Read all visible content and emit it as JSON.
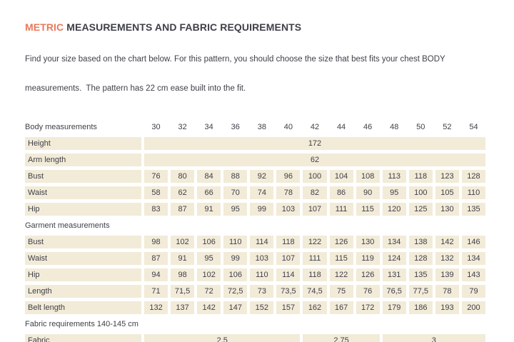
{
  "header": {
    "title_accent": "METRIC",
    "title_rest": " MEASUREMENTS AND FABRIC REQUIREMENTS",
    "intro_line1": "Find your size based on the chart below. For this pattern, you should choose the size that best fits your chest BODY",
    "intro_line2": "measurements.  The pattern has 22 cm ease built into the fit."
  },
  "colors": {
    "accent": "#e8795c",
    "cell_background": "#f2ebd8",
    "text": "#3e3f49"
  },
  "chart_data": {
    "type": "table",
    "title": "METRIC MEASUREMENTS AND FABRIC REQUIREMENTS",
    "sizes": [
      "30",
      "32",
      "34",
      "36",
      "38",
      "40",
      "42",
      "44",
      "46",
      "48",
      "50",
      "52",
      "54"
    ],
    "rows": [
      {
        "type": "sizes-header",
        "label": "Body measurements"
      },
      {
        "type": "span",
        "label": "Height",
        "value": "172"
      },
      {
        "type": "span",
        "label": "Arm length",
        "value": "62"
      },
      {
        "type": "values",
        "label": "Bust",
        "values": [
          "76",
          "80",
          "84",
          "88",
          "92",
          "96",
          "100",
          "104",
          "108",
          "113",
          "118",
          "123",
          "128"
        ]
      },
      {
        "type": "values",
        "label": "Waist",
        "values": [
          "58",
          "62",
          "66",
          "70",
          "74",
          "78",
          "82",
          "86",
          "90",
          "95",
          "100",
          "105",
          "110"
        ]
      },
      {
        "type": "values",
        "label": "Hip",
        "values": [
          "83",
          "87",
          "91",
          "95",
          "99",
          "103",
          "107",
          "111",
          "115",
          "120",
          "125",
          "130",
          "135"
        ]
      },
      {
        "type": "section",
        "label": "Garment measurements"
      },
      {
        "type": "values",
        "label": "Bust",
        "values": [
          "98",
          "102",
          "106",
          "110",
          "114",
          "118",
          "122",
          "126",
          "130",
          "134",
          "138",
          "142",
          "146"
        ]
      },
      {
        "type": "values",
        "label": "Waist",
        "values": [
          "87",
          "91",
          "95",
          "99",
          "103",
          "107",
          "111",
          "115",
          "119",
          "124",
          "128",
          "132",
          "134"
        ]
      },
      {
        "type": "values",
        "label": "Hip",
        "values": [
          "94",
          "98",
          "102",
          "106",
          "110",
          "114",
          "118",
          "122",
          "126",
          "131",
          "135",
          "139",
          "143"
        ]
      },
      {
        "type": "values",
        "label": "Length",
        "values": [
          "71",
          "71,5",
          "72",
          "72,5",
          "73",
          "73,5",
          "74,5",
          "75",
          "76",
          "76,5",
          "77,5",
          "78",
          "79"
        ]
      },
      {
        "type": "values",
        "label": "Belt length",
        "values": [
          "132",
          "137",
          "142",
          "147",
          "152",
          "157",
          "162",
          "167",
          "172",
          "179",
          "186",
          "193",
          "200"
        ]
      },
      {
        "type": "section",
        "label": "Fabric requirements 140-145 cm"
      },
      {
        "type": "spans",
        "label": "Fabric",
        "spans": [
          {
            "span": 6,
            "value": "2,5"
          },
          {
            "span": 3,
            "value": "2,75"
          },
          {
            "span": 4,
            "value": "3"
          }
        ]
      }
    ]
  }
}
